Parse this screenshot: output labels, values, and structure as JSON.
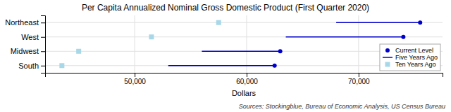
{
  "chart_data": {
    "type": "dot",
    "title": "Per Capita Annualized Nominal Gross Domestic Product (First Quarter 2020)",
    "xlabel": "Dollars",
    "annotations": [
      "Sources: Stockingblue, Bureau of Economic Analysis, US Census Bureau"
    ],
    "orientation": "horizontal",
    "categories": [
      "Northeast",
      "West",
      "Midwest",
      "South"
    ],
    "series": [
      {
        "name": "Current Level",
        "type": "scatter",
        "marker": "circle",
        "color": "#0000cc",
        "values": [
          75500,
          74000,
          63000,
          62500
        ]
      },
      {
        "name": "Five Years Ago",
        "type": "segment",
        "color": "#0000cc",
        "values": [
          68000,
          63500,
          56000,
          53000
        ]
      },
      {
        "name": "Ten Years Ago",
        "type": "scatter",
        "marker": "square",
        "color": "#a8d8e8",
        "values": [
          57500,
          51500,
          45000,
          43500
        ]
      }
    ],
    "xlim": [
      42000,
      77500
    ],
    "xticks": [
      {
        "value": 50000,
        "label": "50,000"
      },
      {
        "value": 60000,
        "label": "60,000"
      },
      {
        "value": 70000,
        "label": "70,000"
      }
    ],
    "grid": true,
    "legend": "lower right"
  }
}
